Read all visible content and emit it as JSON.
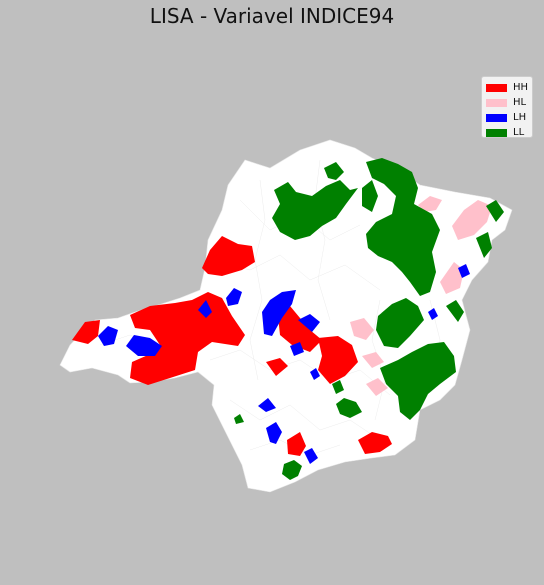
{
  "title": "LISA - Variavel INDICE94",
  "legend": {
    "items": [
      {
        "label": "HH",
        "color": "#ff0000"
      },
      {
        "label": "HL",
        "color": "#ffc0cb"
      },
      {
        "label": "LH",
        "color": "#0000ff"
      },
      {
        "label": "LL",
        "color": "#008000"
      }
    ]
  },
  "colors": {
    "background": "#bfbfbf",
    "not_significant": "#ffffff",
    "hh": "#ff0000",
    "hl": "#ffc0cb",
    "lh": "#0000ff",
    "ll": "#008000"
  }
}
